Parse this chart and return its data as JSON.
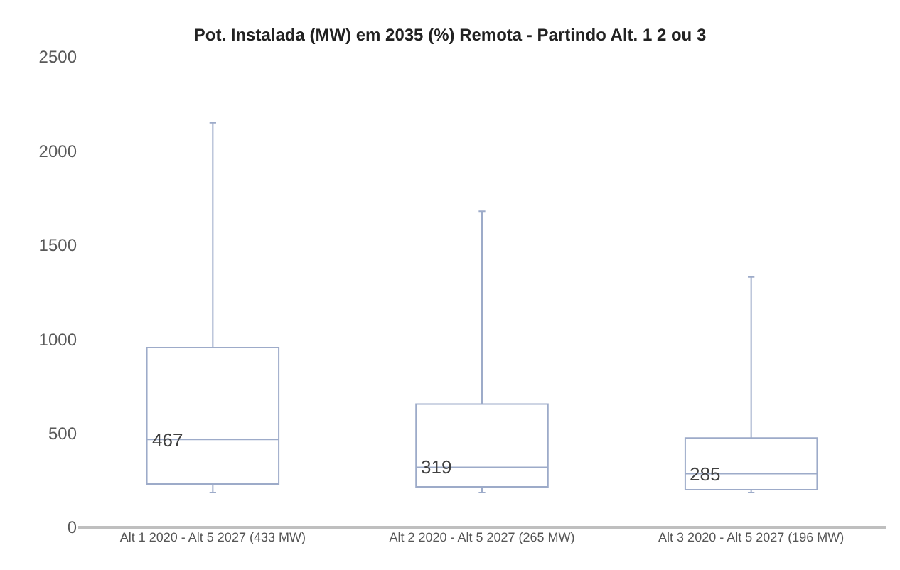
{
  "chart_data": {
    "type": "box",
    "title": "Pot. Instalada (MW) em 2035 (%) Remota - Partindo Alt. 1 2 ou 3",
    "categories": [
      "Alt 1 2020 - Alt 5 2027 (433 MW)",
      "Alt 2 2020 - Alt 5 2027 (265 MW)",
      "Alt 3 2020 - Alt 5 2027 (196 MW)"
    ],
    "boxes": [
      {
        "low": 185,
        "q1": 230,
        "median": 467,
        "q3": 955,
        "high": 2150
      },
      {
        "low": 185,
        "q1": 215,
        "median": 319,
        "q3": 655,
        "high": 1680
      },
      {
        "low": 185,
        "q1": 200,
        "median": 285,
        "q3": 475,
        "high": 1330
      }
    ],
    "color": "#9dabc9",
    "annotations": [
      {
        "text": "467",
        "x": "Alt 1 2020 - Alt 5 2027 (433 MW)",
        "y": 467
      },
      {
        "text": "319",
        "x": "Alt 2 2020 - Alt 5 2027 (265 MW)",
        "y": 319
      },
      {
        "text": "285",
        "x": "Alt 3 2020 - Alt 5 2027 (196 MW)",
        "y": 285
      }
    ],
    "ylim": [
      0,
      2500
    ],
    "yticks": [
      0,
      500,
      1000,
      1500,
      2000,
      2500
    ],
    "grid": false
  }
}
